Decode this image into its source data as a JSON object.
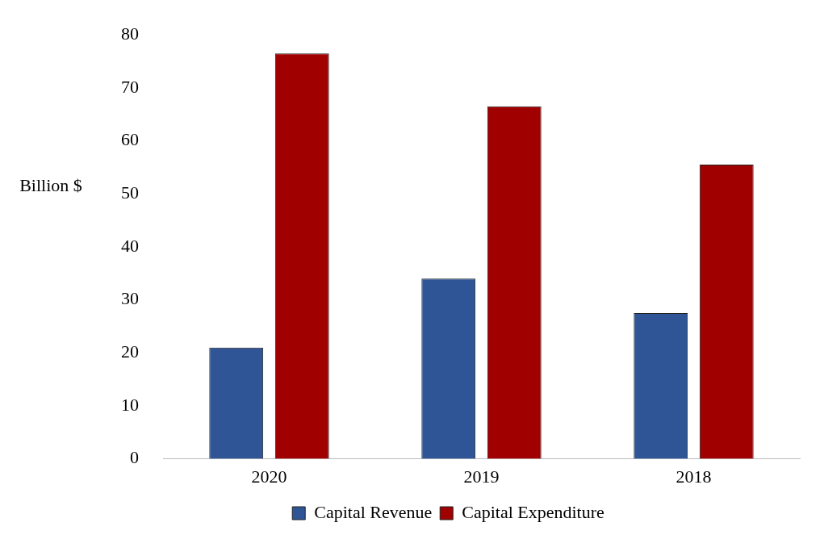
{
  "chart_data": {
    "type": "bar",
    "ylabel": "Billion $",
    "categories": [
      "2020",
      "2019",
      "2018"
    ],
    "series": [
      {
        "name": "Capital Revenue",
        "color": "#2f5597",
        "values": [
          21,
          34,
          27.5
        ]
      },
      {
        "name": "Capital Expenditure",
        "color": "#a00000",
        "values": [
          76.5,
          66.5,
          55.5
        ]
      }
    ],
    "ylim": [
      0,
      80
    ],
    "yticks": [
      0,
      10,
      20,
      30,
      40,
      50,
      60,
      70,
      80
    ],
    "grid": false,
    "legend": "bottom"
  }
}
